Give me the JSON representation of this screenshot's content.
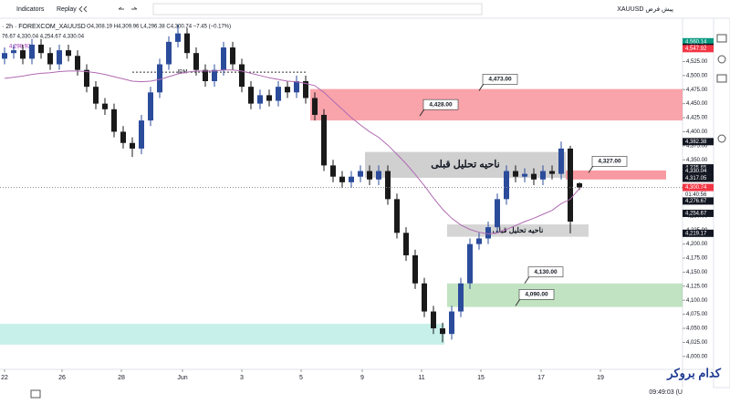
{
  "ui": {
    "indicators": "Indicators",
    "replay": "Replay",
    "symbol_title": "· 2h · FOREXCOM_XAUUSD",
    "ohlc": "O4,308.19 H4,309.96 L4,296.38 C4,300.74 −7.45 (−0.17%)",
    "indicator_values": "76.67 4,330.04 4,254.67 4,330.04",
    "ma_value": "4,298.92",
    "symbol_right": "XAUUSD پیش فرض",
    "countdown": "01:40:56",
    "clock": "09:49:03 (U",
    "watermark": "کدام بروکر",
    "idm": "IDM"
  },
  "chart_data": {
    "type": "candlestick",
    "xlim": [
      -0.5,
      74.3
    ],
    "ylim": [
      3977,
      4602
    ],
    "xticks": [
      {
        "value": 0,
        "label": "22"
      },
      {
        "value": 6.3,
        "label": "26"
      },
      {
        "value": 12.8,
        "label": "28"
      },
      {
        "value": 19.5,
        "label": "Jun"
      },
      {
        "value": 26,
        "label": "3"
      },
      {
        "value": 32.5,
        "label": "5"
      },
      {
        "value": 39.2,
        "label": "9"
      },
      {
        "value": 45.7,
        "label": "11"
      },
      {
        "value": 52.2,
        "label": "15"
      },
      {
        "value": 58.8,
        "label": "17"
      },
      {
        "value": 65.3,
        "label": "19"
      }
    ],
    "yticks": [
      {
        "value": 4000,
        "label": "4,000.00"
      },
      {
        "value": 4025,
        "label": "4,025.00"
      },
      {
        "value": 4050,
        "label": "4,050.00"
      },
      {
        "value": 4075,
        "label": "4,075.00"
      },
      {
        "value": 4100,
        "label": "4,100.00"
      },
      {
        "value": 4125,
        "label": "4,125.00"
      },
      {
        "value": 4150,
        "label": "4,150.00"
      },
      {
        "value": 4175,
        "label": "4,175.00"
      },
      {
        "value": 4200,
        "label": "4,200.00"
      },
      {
        "value": 4225,
        "label": "4,225.00"
      },
      {
        "value": 4250,
        "label": "4,250.00"
      },
      {
        "value": 4275,
        "label": "4,275.00"
      },
      {
        "value": 4350,
        "label": "4,350.00"
      },
      {
        "value": 4375,
        "label": "4,375.00"
      },
      {
        "value": 4400,
        "label": "4,400.00"
      },
      {
        "value": 4425,
        "label": "4,425.00"
      },
      {
        "value": 4450,
        "label": "4,450.00"
      },
      {
        "value": 4475,
        "label": "4,475.00"
      },
      {
        "value": 4500,
        "label": "4,500.00"
      },
      {
        "value": 4525,
        "label": "4,525.00"
      }
    ],
    "up_color": "#2b4c9b",
    "down_color": "#1a1a1a",
    "open": [
      4530,
      4540,
      4545,
      4530,
      4555,
      4540,
      4520,
      4545,
      4535,
      4510,
      4480,
      4450,
      4440,
      4400,
      4380,
      4370,
      4420,
      4470,
      4520,
      4560,
      4575,
      4540,
      4510,
      4490,
      4510,
      4550,
      4520,
      4480,
      4450,
      4465,
      4455,
      4480,
      4470,
      4490,
      4460,
      4430,
      4340,
      4320,
      4310,
      4320,
      4330,
      4315,
      4330,
      4280,
      4220,
      4180,
      4130,
      4080,
      4050,
      4040,
      4080,
      4130,
      4200,
      4210,
      4230,
      4280,
      4330,
      4320,
      4325,
      4315,
      4330,
      4325,
      4370,
      4308.19
    ],
    "high": [
      4550,
      4555,
      4555,
      4565,
      4565,
      4550,
      4555,
      4555,
      4545,
      4520,
      4490,
      4460,
      4450,
      4410,
      4390,
      4430,
      4480,
      4530,
      4570,
      4590,
      4585,
      4550,
      4520,
      4520,
      4560,
      4560,
      4530,
      4490,
      4475,
      4475,
      4490,
      4490,
      4500,
      4500,
      4470,
      4440,
      4350,
      4330,
      4330,
      4340,
      4340,
      4340,
      4340,
      4290,
      4230,
      4190,
      4140,
      4090,
      4060,
      4090,
      4140,
      4210,
      4220,
      4240,
      4290,
      4340,
      4340,
      4335,
      4335,
      4340,
      4340,
      4382.38,
      4375,
      4309.96
    ],
    "low": [
      4520,
      4530,
      4520,
      4520,
      4530,
      4510,
      4510,
      4525,
      4500,
      4470,
      4440,
      4430,
      4390,
      4370,
      4355,
      4360,
      4410,
      4460,
      4510,
      4550,
      4530,
      4500,
      4480,
      4480,
      4500,
      4510,
      4470,
      4440,
      4440,
      4445,
      4445,
      4460,
      4460,
      4450,
      4420,
      4330,
      4310,
      4300,
      4300,
      4310,
      4305,
      4305,
      4270,
      4210,
      4170,
      4120,
      4070,
      4040,
      4025,
      4030,
      4070,
      4120,
      4190,
      4200,
      4220,
      4270,
      4310,
      4310,
      4305,
      4305,
      4315,
      4315,
      4219.17,
      4296.38
    ],
    "close": [
      4540,
      4545,
      4530,
      4555,
      4540,
      4520,
      4545,
      4535,
      4510,
      4480,
      4450,
      4440,
      4400,
      4380,
      4370,
      4420,
      4470,
      4520,
      4560,
      4575,
      4540,
      4510,
      4490,
      4510,
      4550,
      4520,
      4480,
      4450,
      4465,
      4455,
      4480,
      4470,
      4490,
      4460,
      4430,
      4340,
      4320,
      4310,
      4320,
      4330,
      4315,
      4330,
      4280,
      4220,
      4180,
      4130,
      4080,
      4050,
      4040,
      4080,
      4130,
      4200,
      4210,
      4230,
      4280,
      4330,
      4320,
      4325,
      4315,
      4330,
      4325,
      4370,
      4240,
      4300.74
    ],
    "ma": {
      "color": "#b06ab3",
      "values": [
        4495,
        4497,
        4499,
        4502,
        4504,
        4505,
        4507,
        4508,
        4508,
        4507,
        4505,
        4502,
        4498,
        4494,
        4490,
        4489,
        4490,
        4493,
        4498,
        4503,
        4506,
        4508,
        4508,
        4508,
        4510,
        4510,
        4508,
        4504,
        4500,
        4496,
        4493,
        4490,
        4489,
        4486,
        4482,
        4470,
        4455,
        4440,
        4425,
        4412,
        4400,
        4390,
        4376,
        4360,
        4343,
        4324,
        4304,
        4282,
        4262,
        4246,
        4234,
        4226,
        4221,
        4218,
        4220,
        4226,
        4233,
        4240,
        4246,
        4253,
        4260,
        4272,
        4280,
        4298.92
      ]
    },
    "zones": [
      {
        "range": [
          4420,
          4476
        ],
        "x": [
          33.5,
          74.3
        ],
        "color": "rgba(242,54,69,0.45)"
      },
      {
        "range": [
          4318,
          4364
        ],
        "x": [
          39.5,
          61.5
        ],
        "color": "rgba(150,150,150,0.45)",
        "label": "ناحیه تحلیل قبلی"
      },
      {
        "range": [
          4315,
          4331
        ],
        "x": [
          61.5,
          72.5
        ],
        "color": "rgba(242,54,69,0.5)"
      },
      {
        "range": [
          4213,
          4235
        ],
        "x": [
          48.5,
          64
        ],
        "color": "rgba(150,150,150,0.4)",
        "label": "ناحیه تحلیل قبلی"
      },
      {
        "range": [
          4088,
          4130
        ],
        "x": [
          48.5,
          74.3
        ],
        "color": "rgba(76,175,80,0.35)"
      },
      {
        "range": [
          4021,
          4058
        ],
        "x": [
          -0.5,
          48.2
        ],
        "color": "rgba(0,188,160,0.22)"
      }
    ],
    "callouts": [
      {
        "value": 4473,
        "label": "4,473.00",
        "x": 52
      },
      {
        "value": 4428,
        "label": "4,428.00",
        "x": 45.5
      },
      {
        "value": 4327,
        "label": "4,327.00",
        "x": 64
      },
      {
        "value": 4130,
        "label": "4,130.00",
        "x": 57
      },
      {
        "value": 4090,
        "label": "4,090.00",
        "x": 56
      }
    ],
    "price_labels": [
      {
        "value": 4560.14,
        "label": "4,560.14",
        "color": "#089981"
      },
      {
        "value": 4550.46,
        "label": "4,550.46",
        "color": "#131722"
      },
      {
        "value": 4547.92,
        "label": "4,547.92",
        "color": "#f23645"
      },
      {
        "value": 4382.38,
        "label": "4,382.38",
        "color": "#131722"
      },
      {
        "value": 4335.65,
        "label": "4,335.65",
        "color": "#131722"
      },
      {
        "value": 4330.04,
        "label": "4,330.04",
        "color": "#131722"
      },
      {
        "value": 4317.05,
        "label": "4,317.05",
        "color": "#131722"
      },
      {
        "value": 4300.74,
        "label": "4,300.74",
        "color": "#f23645"
      },
      {
        "value": 4276.67,
        "label": "4,276.67",
        "color": "#131722"
      },
      {
        "value": 4254.67,
        "label": "4,254.67",
        "color": "#131722"
      },
      {
        "value": 4219.17,
        "label": "4,219.17",
        "color": "#131722"
      }
    ]
  }
}
